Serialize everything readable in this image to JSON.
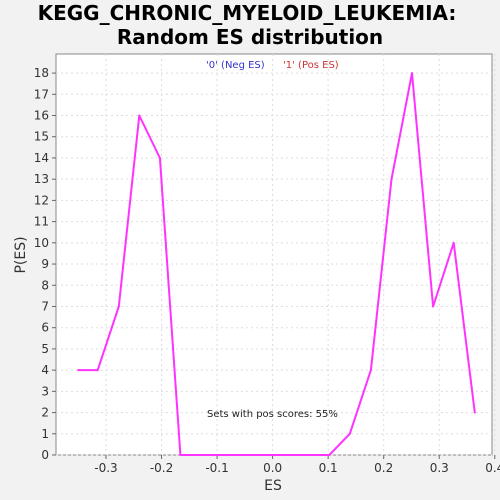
{
  "chart_data": {
    "type": "line",
    "title": "KEGG_CHRONIC_MYELOID_LEUKEMIA:",
    "subtitle": "Random ES distribution",
    "xlabel": "ES",
    "ylabel": "P(ES)",
    "xlim": [
      -0.39,
      0.395
    ],
    "ylim": [
      0,
      18.9
    ],
    "xticks": [
      -0.3,
      -0.2,
      -0.1,
      0.0,
      0.1,
      0.2,
      0.3,
      0.4
    ],
    "xtick_labels": [
      "-0.3",
      "-0.2",
      "-0.1",
      "0.0",
      "0.1",
      "0.2",
      "0.3",
      "0.4"
    ],
    "yticks": [
      0,
      1,
      2,
      3,
      4,
      5,
      6,
      7,
      8,
      9,
      10,
      11,
      12,
      13,
      14,
      15,
      16,
      17,
      18
    ],
    "ytick_labels": [
      "0",
      "1",
      "2",
      "3",
      "4",
      "5",
      "6",
      "7",
      "8",
      "9",
      "10",
      "11",
      "12",
      "13",
      "14",
      "15",
      "16",
      "17",
      "18"
    ],
    "grid": true,
    "legend": [
      {
        "label": "'0' (Neg ES)",
        "color": "#3333cc"
      },
      {
        "label": "'1' (Pos ES)",
        "color": "#cc3333"
      }
    ],
    "annotation": "Sets with pos scores: 55%",
    "series": [
      {
        "color": "#ff33ff",
        "x": [
          -0.35,
          -0.315,
          -0.277,
          -0.24,
          -0.203,
          -0.166,
          0.102,
          0.139,
          0.177,
          0.214,
          0.251,
          0.289,
          0.326,
          0.364
        ],
        "y": [
          4,
          4,
          7,
          16,
          14,
          0,
          0,
          1,
          4,
          13,
          18,
          7,
          10,
          2
        ]
      }
    ]
  }
}
